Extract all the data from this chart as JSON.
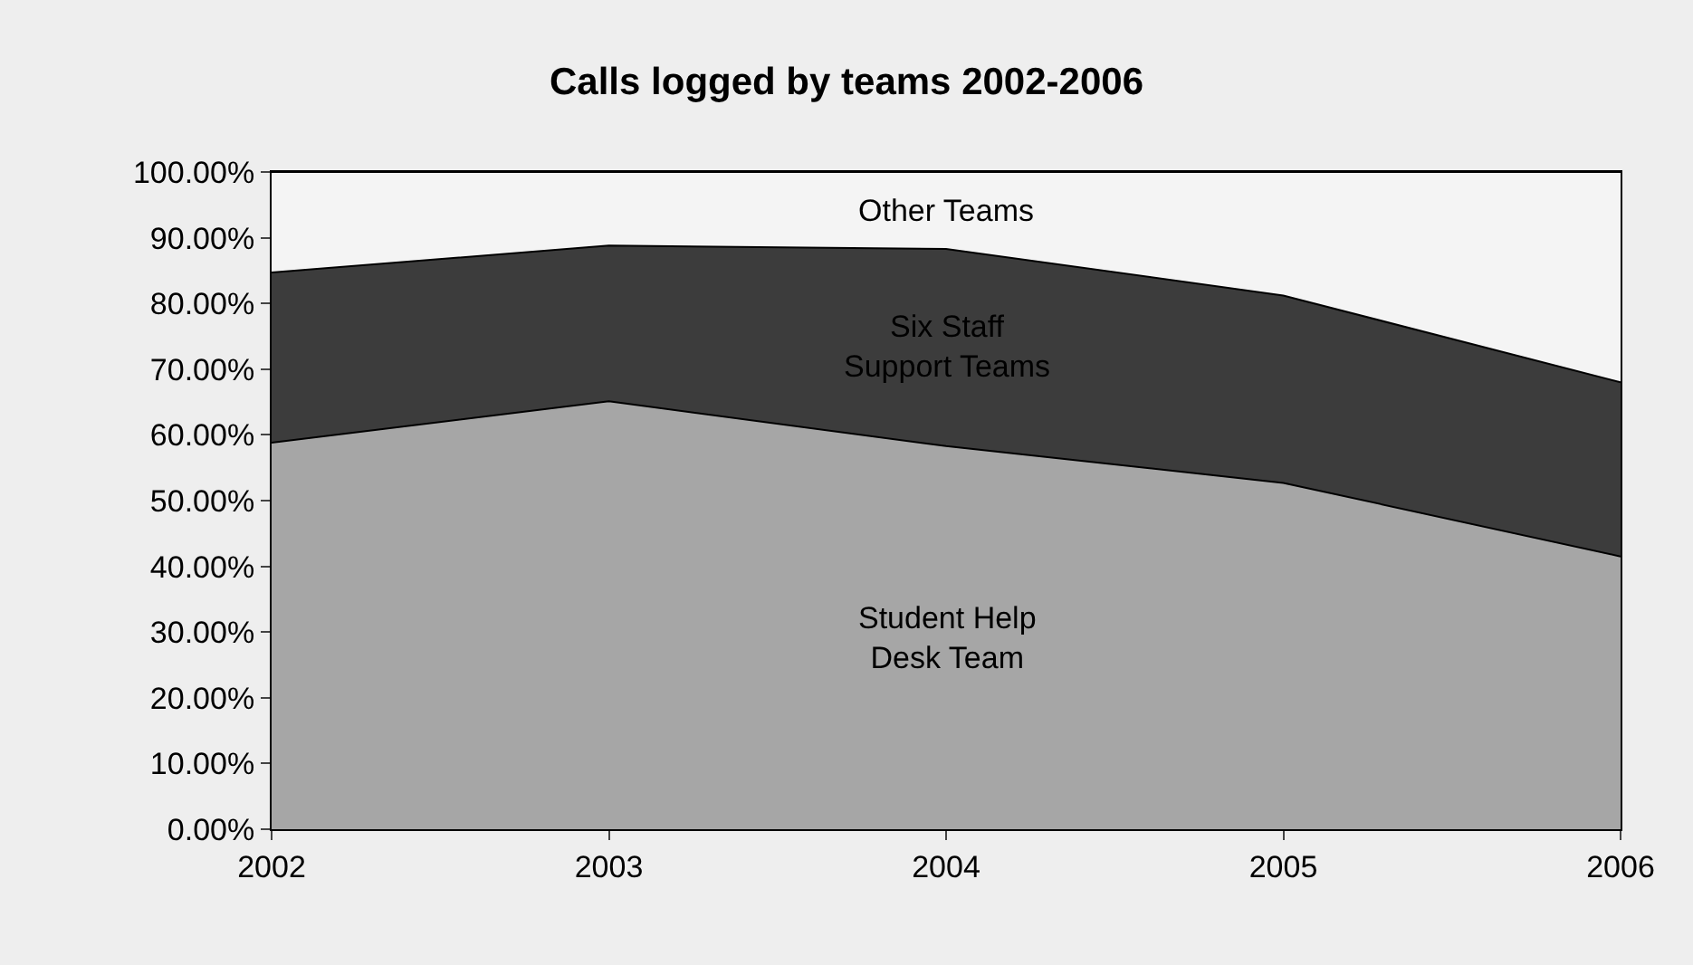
{
  "chart_data": {
    "type": "area",
    "title": "Calls logged by teams 2002-2006",
    "stacked": true,
    "legend": false,
    "categories": [
      "2002",
      "2003",
      "2004",
      "2005",
      "2006"
    ],
    "series": [
      {
        "name": "Student Help Desk Team",
        "color": "#a6a6a6",
        "values": [
          58.8,
          65.1,
          58.3,
          52.7,
          41.5
        ]
      },
      {
        "name": "Six Staff Support Teams",
        "color": "#3c3c3c",
        "values": [
          25.9,
          23.7,
          30.0,
          28.5,
          26.5
        ]
      },
      {
        "name": "Other Teams",
        "color": "#f4f4f4",
        "values": [
          15.3,
          11.2,
          11.7,
          18.8,
          32.0
        ]
      }
    ],
    "ylim": [
      0,
      100
    ],
    "yticks": [
      {
        "value": 0,
        "label": "0.00%"
      },
      {
        "value": 10,
        "label": "10.00%"
      },
      {
        "value": 20,
        "label": "20.00%"
      },
      {
        "value": 30,
        "label": "30.00%"
      },
      {
        "value": 40,
        "label": "40.00%"
      },
      {
        "value": 50,
        "label": "50.00%"
      },
      {
        "value": 60,
        "label": "60.00%"
      },
      {
        "value": 70,
        "label": "70.00%"
      },
      {
        "value": 80,
        "label": "80.00%"
      },
      {
        "value": 90,
        "label": "90.00%"
      },
      {
        "value": 100,
        "label": "100.00%"
      }
    ]
  }
}
